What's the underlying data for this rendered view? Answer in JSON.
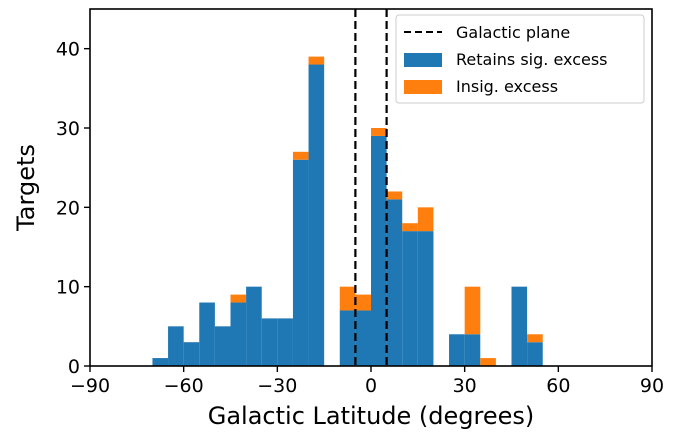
{
  "chart_data": {
    "type": "bar",
    "subtype": "stacked-histogram",
    "title": "",
    "xlabel": "Galactic Latitude (degrees)",
    "ylabel": "Targets",
    "xlim": [
      -90,
      90
    ],
    "ylim": [
      0,
      45
    ],
    "xticks": [
      -90,
      -60,
      -30,
      0,
      30,
      60,
      90
    ],
    "yticks": [
      0,
      10,
      20,
      30,
      40
    ],
    "bin_width": 5,
    "bin_starts": [
      -70,
      -65,
      -60,
      -55,
      -50,
      -45,
      -40,
      -35,
      -30,
      -25,
      -20,
      -15,
      -10,
      -5,
      0,
      5,
      10,
      15,
      20,
      25,
      30,
      35,
      40,
      45,
      50,
      55
    ],
    "series": [
      {
        "name": "Retains sig. excess",
        "color": "#1f77b4",
        "values": [
          1,
          5,
          3,
          8,
          5,
          8,
          10,
          6,
          6,
          26,
          38,
          0,
          7,
          7,
          29,
          21,
          17,
          17,
          0,
          4,
          4,
          0,
          0,
          10,
          3,
          0
        ]
      },
      {
        "name": "Insig. excess",
        "color": "#ff7f0e",
        "values": [
          0,
          0,
          0,
          0,
          0,
          1,
          0,
          0,
          0,
          1,
          1,
          0,
          3,
          2,
          1,
          1,
          1,
          3,
          0,
          0,
          6,
          1,
          0,
          0,
          1,
          0
        ]
      }
    ],
    "vlines": {
      "name": "Galactic plane",
      "style": "dashed",
      "color": "#000000",
      "x": [
        -5,
        5
      ]
    },
    "legend": {
      "placement": "top-right",
      "entries": [
        {
          "label": "Galactic plane",
          "kind": "dashed-line",
          "color": "#000000"
        },
        {
          "label": "Retains sig. excess",
          "kind": "patch",
          "color": "#1f77b4"
        },
        {
          "label": "Insig. excess",
          "kind": "patch",
          "color": "#ff7f0e"
        }
      ]
    },
    "grid": false
  }
}
